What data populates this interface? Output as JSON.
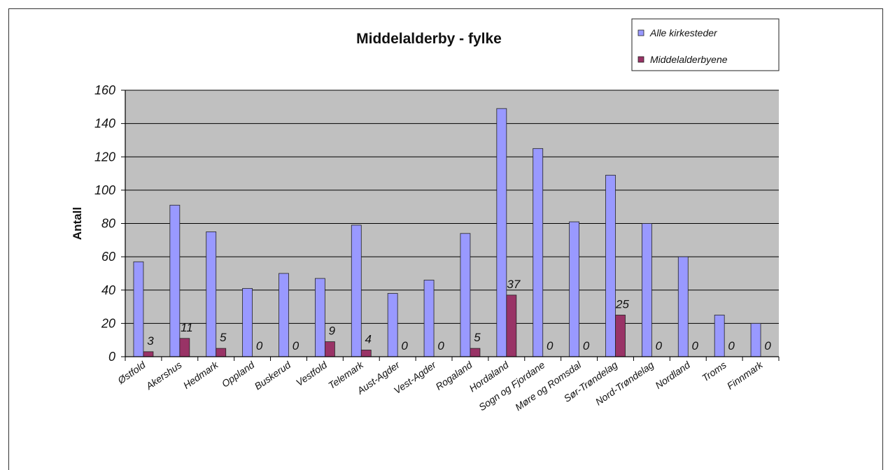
{
  "chart_data": {
    "type": "bar",
    "title": "Middelalderby - fylke",
    "ylabel": "Antall",
    "xlabel": "",
    "ylim": [
      0,
      160
    ],
    "yticks": [
      "0",
      "20",
      "40",
      "60",
      "80",
      "100",
      "120",
      "140",
      "160"
    ],
    "grid": true,
    "legend_position": "top-right",
    "categories": [
      "Østfold",
      "Akershus",
      "Hedmark",
      "Oppland",
      "Buskerud",
      "Vestfold",
      "Telemark",
      "Aust-Agder",
      "Vest-Agder",
      "Rogaland",
      "Hordaland",
      "Sogn og Fjordane",
      "Møre og Romsdal",
      "Sør-Trøndelag",
      "Nord-Trøndelag",
      "Nordland",
      "Troms",
      "Finnmark"
    ],
    "series": [
      {
        "name": "Alle kirkesteder",
        "color": "#9999ff",
        "values": [
          57,
          91,
          75,
          41,
          50,
          47,
          79,
          38,
          46,
          74,
          149,
          125,
          81,
          109,
          80,
          60,
          25,
          20
        ]
      },
      {
        "name": "Middelalderbyene",
        "color": "#993366",
        "values": [
          3,
          11,
          5,
          0,
          0,
          9,
          4,
          0,
          0,
          5,
          37,
          0,
          0,
          25,
          0,
          0,
          0,
          0
        ]
      }
    ],
    "data_labels": [
      "3",
      "11",
      "5",
      "0",
      "0",
      "9",
      "4",
      "0",
      "0",
      "5",
      "37",
      "0",
      "0",
      "25",
      "0",
      "0",
      "0",
      "0"
    ]
  },
  "colors": {
    "plot_background": "#c0c0c0",
    "gridline": "#000000"
  }
}
